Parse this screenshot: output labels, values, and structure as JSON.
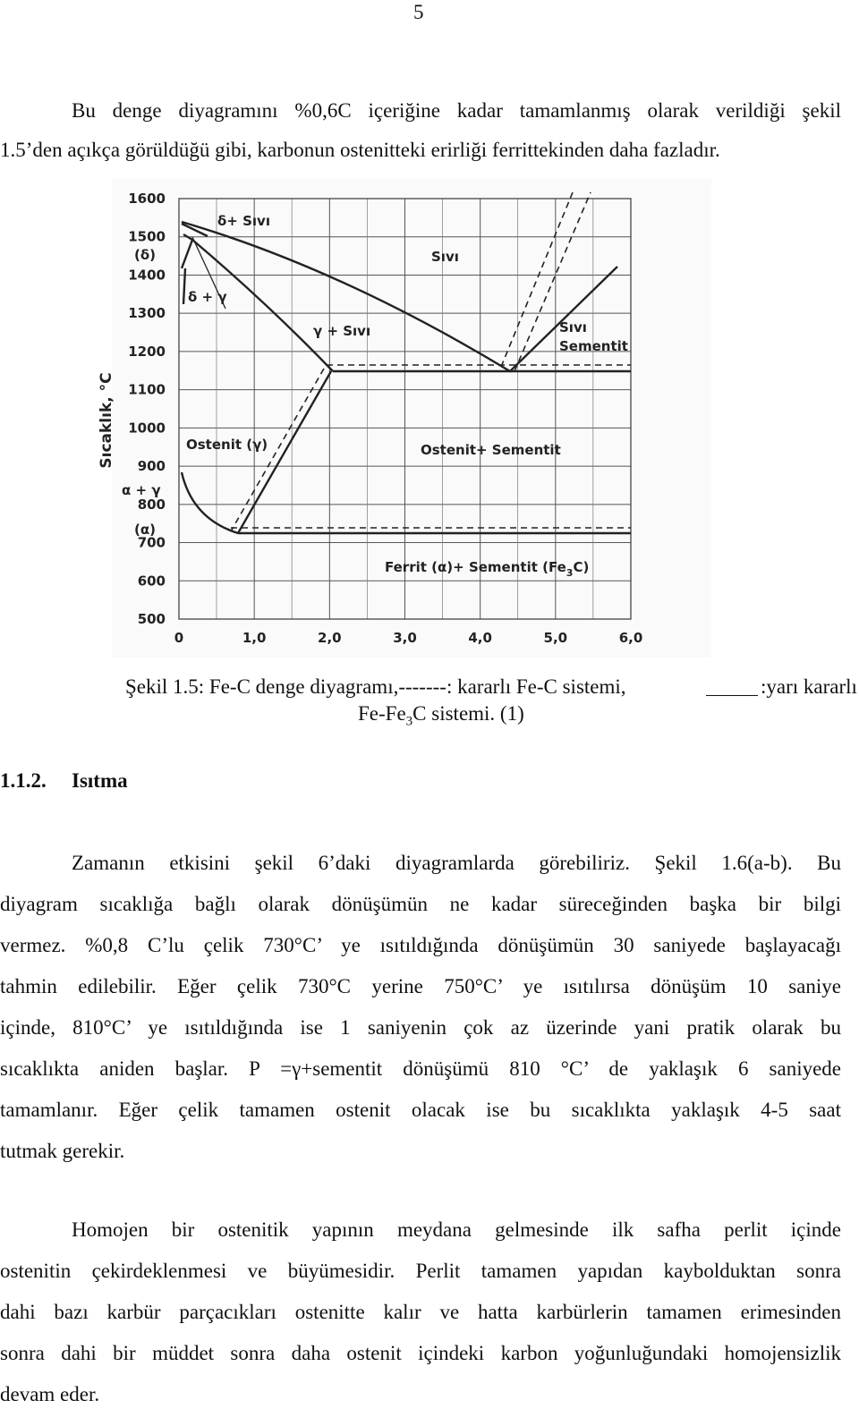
{
  "page_number": "5",
  "intro": {
    "lines": [
      "Bu denge diyagramını %0,6C içeriğine kadar tamamlanmış olarak verildiği şekil",
      "1.5’den açıkça görüldüğü gibi, karbonun ostenitteki erirliği ferrittekinden daha fazladır."
    ]
  },
  "figure": {
    "y_axis_label": "Sıcaklık, °C",
    "y_ticks": [
      "1600",
      "1500",
      "1400",
      "1300",
      "1200",
      "1100",
      "1000",
      "900",
      "800",
      "700",
      "600",
      "500"
    ],
    "x_ticks": [
      "0",
      "1,0",
      "2,0",
      "3,0",
      "4,0",
      "5,0",
      "6,0"
    ],
    "labels": [
      "δ+ Sıvı",
      "Sıvı",
      "(δ)",
      "δ + γ",
      "γ + Sıvı",
      "Sıvı",
      "Sementit",
      "Ostenit (γ)",
      "Ostenit+ Sementit",
      "α + γ",
      "(α)"
    ],
    "ferrit_label": {
      "text": "Ferrit (α)+ Sementit (Fe",
      "sub": "3",
      "tail": "C)"
    },
    "caption": {
      "line1_left": "Şekil 1.5: Fe-C denge diyagramı,-------: kararlı Fe-C sistemi,",
      "line1_right": ":yarı kararlı",
      "line2_left": "Fe-Fe",
      "line2_sub": "3",
      "line2_right": "C sistemi. (1)"
    }
  },
  "section": {
    "number": "1.1.2.",
    "title": "Isıtma"
  },
  "paragraphs": [
    {
      "lines": [
        "Zamanın etkisini şekil 6’daki diyagramlarda görebiliriz. Şekil 1.6(a-b). Bu",
        "diyagram sıcaklığa bağlı olarak dönüşümün ne kadar süreceğinden başka bir bilgi",
        "vermez. %0,8 C’lu çelik 730°C’ ye ısıtıldığında dönüşümün 30 saniyede başlayacağı",
        "tahmin edilebilir. Eğer çelik 730°C yerine 750°C’ ye ısıtılırsa dönüşüm 10 saniye",
        "içinde, 810°C’ ye ısıtıldığında ise 1 saniyenin çok az üzerinde yani pratik olarak bu",
        "sıcaklıkta aniden başlar. P =γ+sementit dönüşümü 810 °C’ de yaklaşık 6 saniyede",
        "tamamlanır. Eğer çelik tamamen ostenit olacak ise bu sıcaklıkta yaklaşık 4-5 saat",
        "tutmak gerekir."
      ]
    },
    {
      "lines": [
        "Homojen bir ostenitik yapının meydana gelmesinde ilk safha perlit içinde",
        "ostenitin çekirdeklenmesi ve büyümesidir. Perlit tamamen yapıdan kaybolduktan sonra",
        "dahi bazı karbür parçacıkları ostenitte kalır ve hatta karbürlerin tamamen erimesinden",
        "sonra dahi bir müddet sonra daha ostenit içindeki karbon yoğunluğundaki homojensizlik",
        "devam eder."
      ]
    }
  ]
}
